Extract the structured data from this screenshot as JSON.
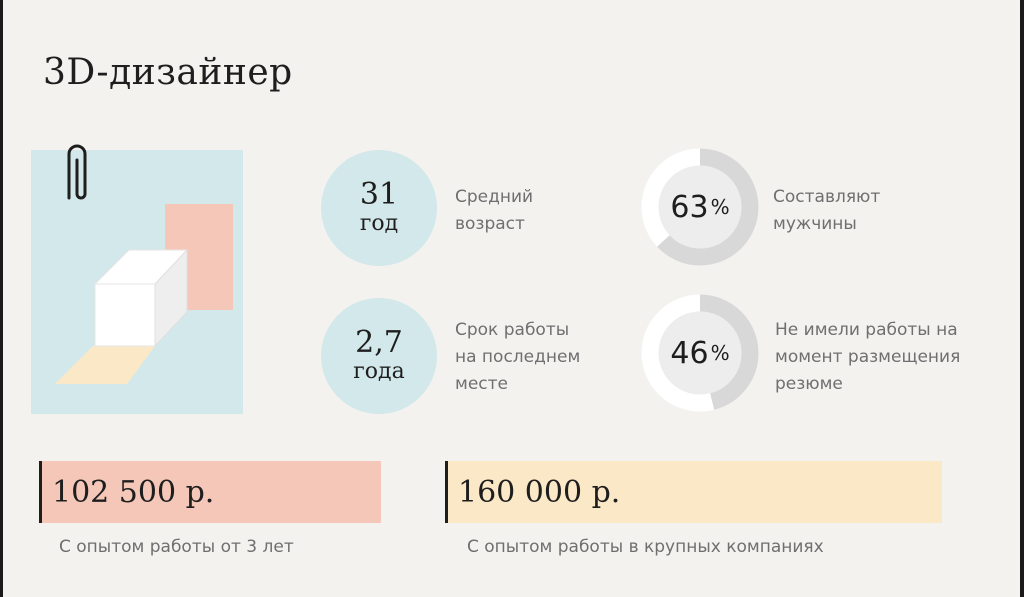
{
  "title": "3D-дизайнер",
  "illustration": {
    "icon": "paperclip-icon"
  },
  "stats": [
    {
      "value": "31",
      "unit": "год",
      "label": "Средний\nвозраст"
    },
    {
      "value": "2,7",
      "unit": "года",
      "label": "Срок работы\nна последнем\nместе"
    }
  ],
  "donuts": [
    {
      "value": "63",
      "symbol": "%",
      "fraction": 0.63,
      "label": "Составляют\nмужчины"
    },
    {
      "value": "46",
      "symbol": "%",
      "fraction": 0.46,
      "label": "Не имели работы на\nмомент размещения\nрезюме"
    }
  ],
  "salaries": [
    {
      "amount": "102 500 р.",
      "caption": "С опытом работы от 3 лет",
      "color": "#f5c7b8"
    },
    {
      "amount": "160 000 р.",
      "caption": "С опытом работы в крупных компаниях",
      "color": "#fbe8c6"
    }
  ],
  "colors": {
    "background": "#f3f2ef",
    "circle": "#d3e8ea",
    "donut_track": "#ffffff",
    "donut_fill": "#d8d8d8",
    "salmon": "#f5c7b8",
    "cream": "#fbe8c6"
  }
}
